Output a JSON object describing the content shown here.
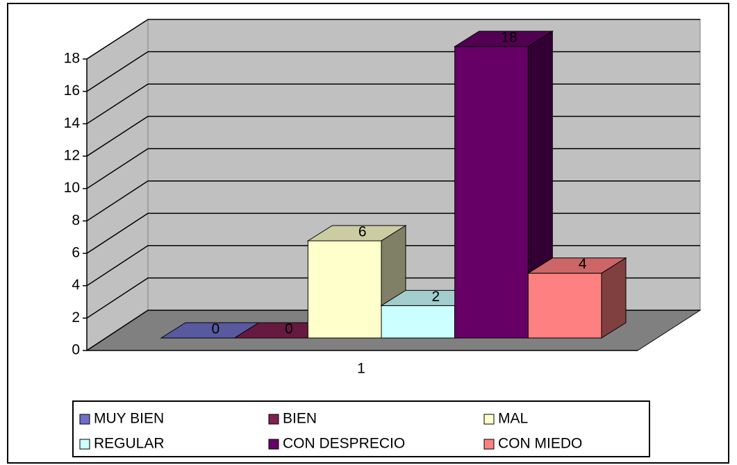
{
  "chart_data": {
    "type": "bar3d",
    "categories": [
      "1"
    ],
    "series": [
      {
        "name": "MUY BIEN",
        "color": "#6f6fc8",
        "values": [
          0
        ]
      },
      {
        "name": "BIEN",
        "color": "#7f2150",
        "values": [
          0
        ]
      },
      {
        "name": "MAL",
        "color": "#ffffcc",
        "values": [
          6
        ]
      },
      {
        "name": "REGULAR",
        "color": "#ccffff",
        "values": [
          2
        ]
      },
      {
        "name": "CON DESPRECIO",
        "color": "#660066",
        "values": [
          18
        ]
      },
      {
        "name": "CON MIEDO",
        "color": "#ff8080",
        "values": [
          4
        ]
      }
    ],
    "ylim": [
      0,
      18
    ],
    "yticks": [
      0,
      2,
      4,
      6,
      8,
      10,
      12,
      14,
      16,
      18
    ],
    "grid": true
  }
}
